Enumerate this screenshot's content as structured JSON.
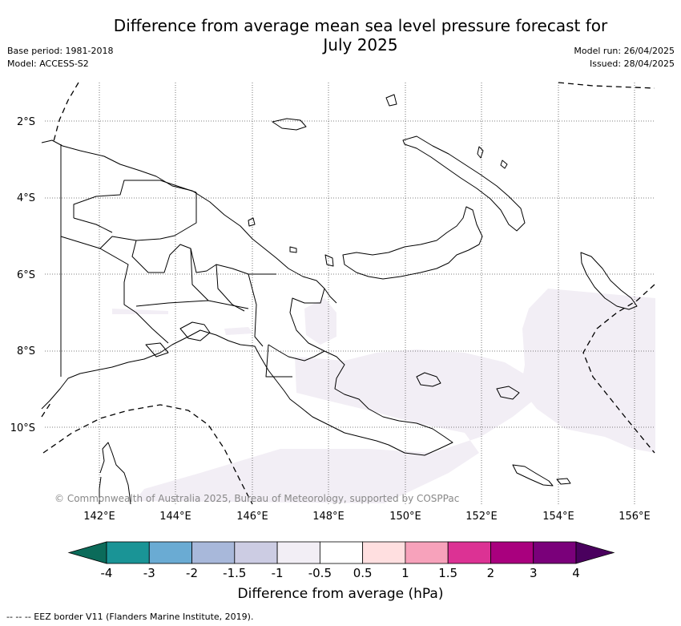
{
  "header": {
    "title": "Difference from average mean sea level pressure forecast for\nJuly 2025",
    "base_period": "Base period: 1981-2018",
    "model": "Model: ACCESS-S2",
    "model_run": "Model run: 26/04/2025",
    "issued": "Issued: 28/04/2025"
  },
  "map": {
    "lat_labels": [
      "2°S",
      "4°S",
      "6°S",
      "8°S",
      "10°S"
    ],
    "lon_labels": [
      "142°E",
      "144°E",
      "146°E",
      "148°E",
      "150°E",
      "152°E",
      "154°E",
      "156°E"
    ],
    "copyright": "© Commonwealth of Australia 2025, Bureau of Meteorology, supported by COSPPac",
    "anomaly_fill_color": "#f2eef5",
    "coast_color": "#000000"
  },
  "colorbar": {
    "colors": [
      "#0b6b5a",
      "#1a9496",
      "#6aabd3",
      "#a8b8da",
      "#cccce3",
      "#f2eef5",
      "#ffffff",
      "#ffdfe0",
      "#f7a2bb",
      "#dc3294",
      "#a9007e",
      "#7a007a",
      "#4a005e"
    ],
    "ticks": [
      "-4",
      "-3",
      "-2",
      "-1.5",
      "-1",
      "-0.5",
      "0.5",
      "1",
      "1.5",
      "2",
      "3",
      "4"
    ],
    "label": "Difference from average (hPa)"
  },
  "footer": {
    "legend": "--  --  -- EEZ border V11 (Flanders Marine Institute, 2019)."
  }
}
